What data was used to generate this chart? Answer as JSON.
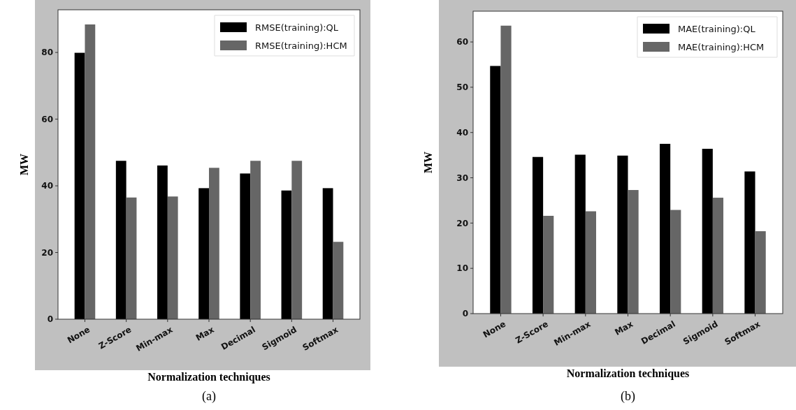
{
  "chart_data": [
    {
      "type": "bar",
      "xlabel": "Normalization techniques",
      "ylabel": "MW",
      "annotations": [
        "(a)"
      ],
      "categories": [
        "None",
        "Z-Score",
        "Min-max",
        "Max",
        "Decimal",
        "Sigmoid",
        "Softmax"
      ],
      "series": [
        {
          "name": "RMSE(training):QL",
          "color": "#000000",
          "values": [
            79.9,
            47.5,
            46.1,
            39.3,
            43.7,
            38.6,
            39.3
          ]
        },
        {
          "name": "RMSE(training):HCM",
          "color": "#666666",
          "values": [
            88.4,
            36.5,
            36.8,
            45.4,
            47.5,
            47.5,
            23.2
          ]
        }
      ],
      "ylim": [
        0,
        92.8
      ],
      "yticks": [
        0,
        20,
        40,
        60,
        80
      ],
      "grid": false,
      "legend": "top right"
    },
    {
      "type": "bar",
      "xlabel": "Normalization techniques",
      "ylabel": "MW",
      "annotations": [
        "(b)"
      ],
      "categories": [
        "None",
        "Z-Score",
        "Min-max",
        "Max",
        "Decimal",
        "Sigmoid",
        "Softmax"
      ],
      "series": [
        {
          "name": "MAE(training):QL",
          "color": "#000000",
          "values": [
            54.7,
            34.6,
            35.1,
            34.9,
            37.5,
            36.4,
            31.4
          ]
        },
        {
          "name": "MAE(training):HCM",
          "color": "#666666",
          "values": [
            63.6,
            21.6,
            22.6,
            27.3,
            22.9,
            25.6,
            18.2
          ]
        }
      ],
      "ylim": [
        0,
        66.8
      ],
      "yticks": [
        0,
        10,
        20,
        30,
        40,
        50,
        60
      ],
      "grid": false,
      "legend": "top right"
    }
  ]
}
